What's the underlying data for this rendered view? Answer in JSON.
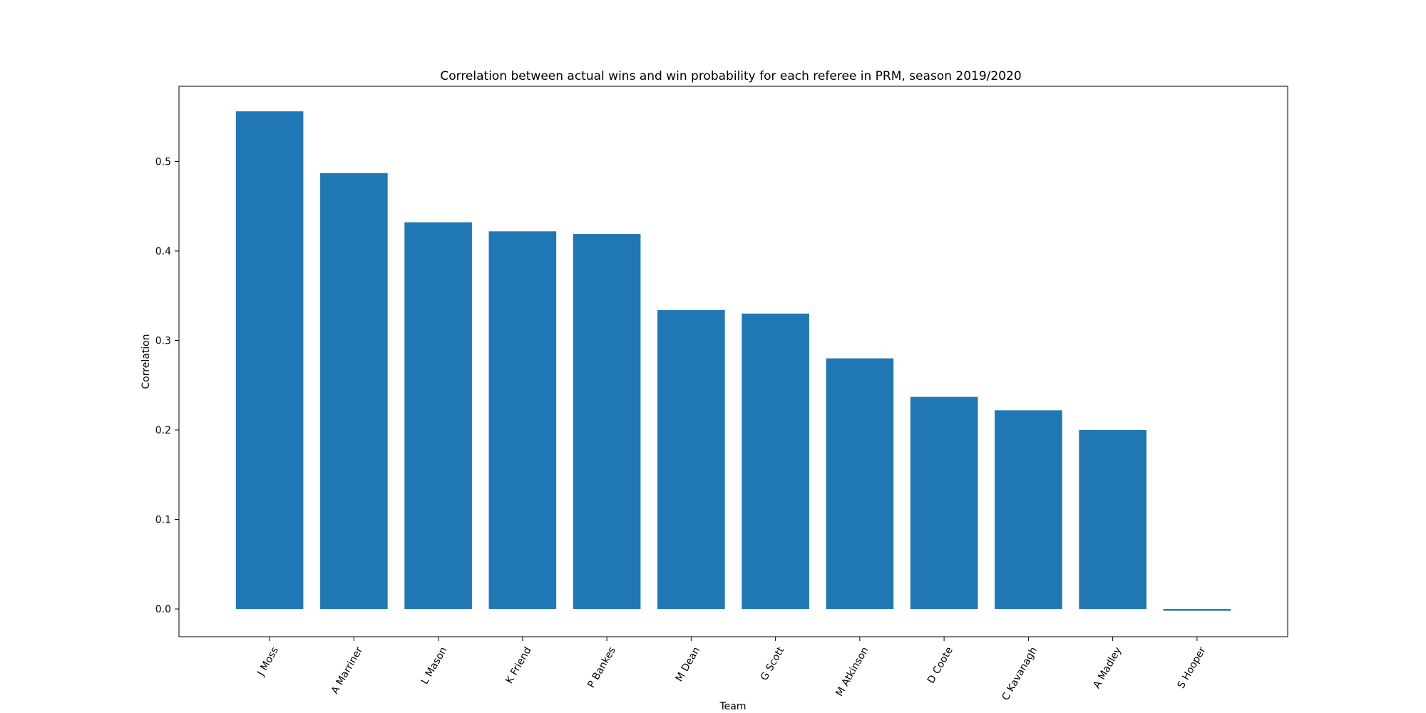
{
  "chart_data": {
    "type": "bar",
    "title": "Correlation between actual wins and win probability for each referee in PRM, season 2019/2020",
    "xlabel": "Team",
    "ylabel": "Correlation",
    "categories": [
      "J Moss",
      "A Marriner",
      "L Mason",
      "K Friend",
      "P Bankes",
      "M Dean",
      "G Scott",
      "M Atkinson",
      "D Coote",
      "C Kavanagh",
      "A Madley",
      "S Hooper"
    ],
    "values": [
      0.556,
      0.487,
      0.432,
      0.422,
      0.419,
      0.334,
      0.33,
      0.28,
      0.237,
      0.222,
      0.2,
      -0.002
    ],
    "ylim": [
      -0.031,
      0.584
    ],
    "yticks": [
      0.0,
      0.1,
      0.2,
      0.3,
      0.4,
      0.5
    ],
    "ytick_labels": [
      "0.0",
      "0.1",
      "0.2",
      "0.3",
      "0.4",
      "0.5"
    ],
    "grid": false,
    "bar_color": "#1f77b4",
    "xtick_rotation_deg": 60
  }
}
